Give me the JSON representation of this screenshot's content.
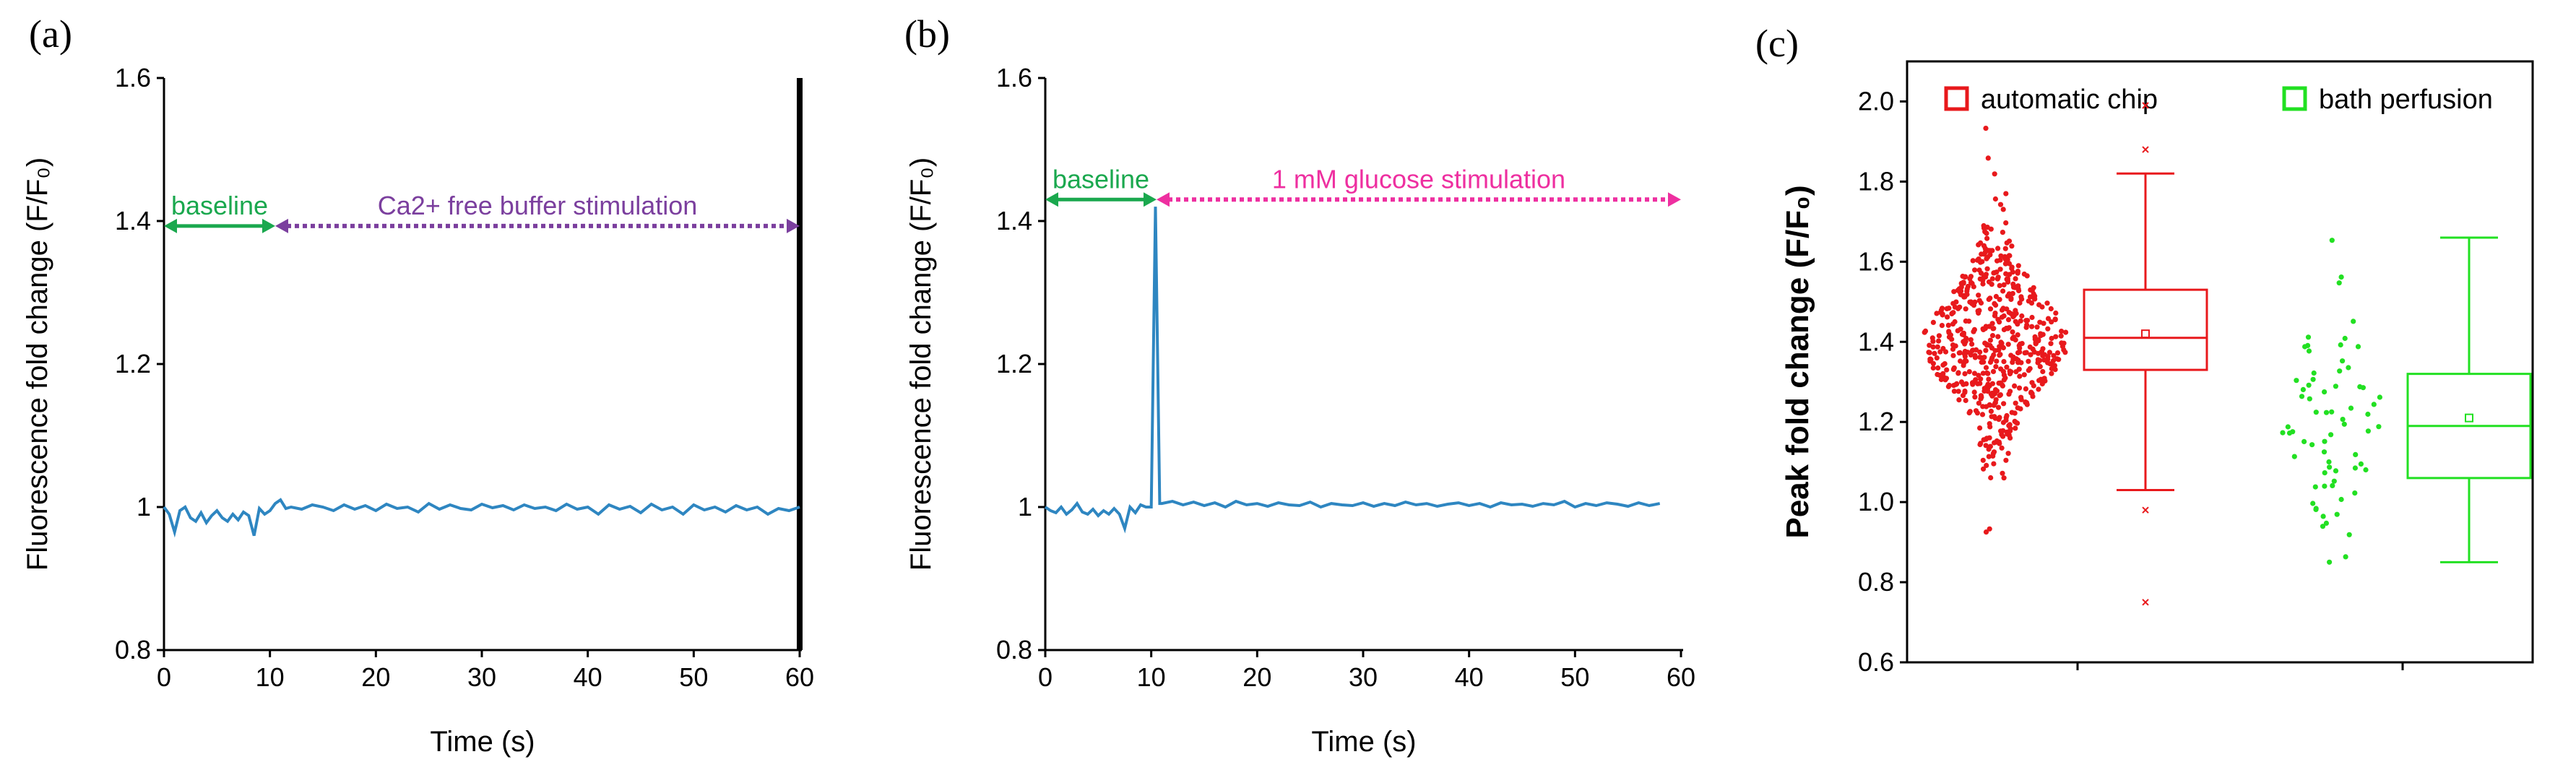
{
  "colors": {
    "trace": "#2e86c1",
    "baseline": "#1aa84e",
    "stim_a": "#7b3f9e",
    "stim_b": "#ee2fa0",
    "auto": "#e8191c",
    "bath": "#22e022",
    "axis": "#000000"
  },
  "chart_data": [
    {
      "type": "line",
      "panel_label": "(a)",
      "xlabel": "Time (s)",
      "ylabel": "Fluorescence  fold change (F/F₀)",
      "xlim": [
        0,
        60
      ],
      "ylim": [
        0.8,
        1.6
      ],
      "xticks": [
        "0",
        "10",
        "20",
        "30",
        "40",
        "50",
        "60"
      ],
      "yticks": [
        "0.8",
        "1",
        "1.2",
        "1.4",
        "1.6"
      ],
      "baseline_label": "baseline",
      "baseline_range": [
        0,
        10.5
      ],
      "stim_label": "Ca2+ free buffer stimulation",
      "stim_range": [
        10.5,
        60
      ],
      "arrow_y": 1.393,
      "series": [
        {
          "name": "trace",
          "x": [
            0,
            0.5,
            1,
            1.5,
            2,
            2.5,
            3,
            3.5,
            4,
            4.5,
            5,
            5.5,
            6,
            6.5,
            7,
            7.5,
            8,
            8.5,
            9,
            9.5,
            10,
            10.5,
            11,
            11.5,
            12,
            13,
            14,
            15,
            16,
            17,
            18,
            19,
            20,
            21,
            22,
            23,
            24,
            25,
            26,
            27,
            28,
            29,
            30,
            31,
            32,
            33,
            34,
            35,
            36,
            37,
            38,
            39,
            40,
            41,
            42,
            43,
            44,
            45,
            46,
            47,
            48,
            49,
            50,
            51,
            52,
            53,
            54,
            55,
            56,
            57,
            58,
            59,
            60
          ],
          "y": [
            1.0,
            0.99,
            0.965,
            0.995,
            1.0,
            0.985,
            0.98,
            0.992,
            0.978,
            0.988,
            0.995,
            0.985,
            0.98,
            0.99,
            0.982,
            0.993,
            0.988,
            0.96,
            0.998,
            0.99,
            0.995,
            1.005,
            1.01,
            0.998,
            1.0,
            0.997,
            1.003,
            1.0,
            0.995,
            1.003,
            0.997,
            1.002,
            0.995,
            1.004,
            0.998,
            1.0,
            0.993,
            1.005,
            0.997,
            1.003,
            0.998,
            0.996,
            1.004,
            0.999,
            1.002,
            0.996,
            1.003,
            0.998,
            1.0,
            0.995,
            1.004,
            0.997,
            1.0,
            0.99,
            1.003,
            0.997,
            1.001,
            0.992,
            1.004,
            0.996,
            1.0,
            0.99,
            1.003,
            0.996,
            1.0,
            0.993,
            1.002,
            0.996,
            1.0,
            0.99,
            0.998,
            0.995,
            1.0
          ]
        }
      ]
    },
    {
      "type": "line",
      "panel_label": "(b)",
      "xlabel": "Time (s)",
      "ylabel": "Fluorescence  fold change (F/F₀)",
      "xlim": [
        0,
        60
      ],
      "ylim": [
        0.8,
        1.6
      ],
      "xticks": [
        "0",
        "10",
        "20",
        "30",
        "40",
        "50",
        "60"
      ],
      "yticks": [
        "0.8",
        "1",
        "1.2",
        "1.4",
        "1.6"
      ],
      "baseline_label": "baseline",
      "baseline_range": [
        0,
        10.5
      ],
      "stim_label": "1 mM glucose stimulation",
      "stim_range": [
        10.5,
        60
      ],
      "arrow_y": 1.43,
      "series": [
        {
          "name": "trace",
          "x": [
            0,
            0.5,
            1,
            1.5,
            2,
            2.5,
            3,
            3.5,
            4,
            4.5,
            5,
            5.5,
            6,
            6.5,
            7,
            7.5,
            8,
            8.5,
            9,
            9.5,
            10,
            10.4,
            10.8,
            11,
            12,
            13,
            14,
            15,
            16,
            17,
            18,
            19,
            20,
            21,
            22,
            23,
            24,
            25,
            26,
            27,
            28,
            29,
            30,
            31,
            32,
            33,
            34,
            35,
            36,
            37,
            38,
            39,
            40,
            41,
            42,
            43,
            44,
            45,
            46,
            47,
            48,
            49,
            50,
            51,
            52,
            53,
            54,
            55,
            56,
            57,
            58
          ],
          "y": [
            1.0,
            0.995,
            0.992,
            1.0,
            0.99,
            0.996,
            1.005,
            0.993,
            0.99,
            0.997,
            0.988,
            0.995,
            0.99,
            0.998,
            0.99,
            0.97,
            1.0,
            0.992,
            1.003,
            1.0,
            1.0,
            1.42,
            1.005,
            1.005,
            1.008,
            1.003,
            1.007,
            1.002,
            1.006,
            1.0,
            1.008,
            1.003,
            1.005,
            1.001,
            1.006,
            1.003,
            1.002,
            1.007,
            1.0,
            1.005,
            1.003,
            1.002,
            1.006,
            1.001,
            1.005,
            1.002,
            1.007,
            1.003,
            1.005,
            1.001,
            1.004,
            1.006,
            1.002,
            1.005,
            1.0,
            1.006,
            1.003,
            1.004,
            1.001,
            1.005,
            1.003,
            1.008,
            1.0,
            1.005,
            1.002,
            1.006,
            1.004,
            1.001,
            1.006,
            1.002,
            1.005
          ]
        }
      ]
    },
    {
      "type": "box",
      "panel_label": "(c)",
      "ylabel": "Peak fold change (F/F₀)",
      "ylim": [
        0.6,
        2.1
      ],
      "yticks": [
        "0.6",
        "0.8",
        "1.0",
        "1.2",
        "1.4",
        "1.6",
        "1.8",
        "2.0"
      ],
      "legend": [
        "automatic chip",
        "bath perfusion"
      ],
      "groups": [
        {
          "name": "automatic chip",
          "n_points": 600,
          "points_center": 1.4,
          "points_min": 0.75,
          "points_max": 2.0,
          "box": {
            "q1": 1.33,
            "median": 1.41,
            "q3": 1.53,
            "mean": 1.42,
            "whisker_low": 1.03,
            "whisker_high": 1.82,
            "outliers": [
              1.99,
              1.88,
              0.98,
              0.75
            ]
          }
        },
        {
          "name": "bath perfusion",
          "n_points": 70,
          "points_center": 1.2,
          "points_min": 0.85,
          "points_max": 1.66,
          "box": {
            "q1": 1.06,
            "median": 1.19,
            "q3": 1.32,
            "mean": 1.21,
            "whisker_low": 0.85,
            "whisker_high": 1.66,
            "outliers": []
          }
        }
      ]
    }
  ]
}
